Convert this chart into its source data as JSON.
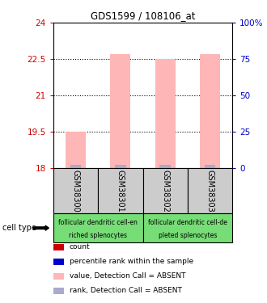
{
  "title": "GDS1599 / 108106_at",
  "samples": [
    "GSM38300",
    "GSM38301",
    "GSM38302",
    "GSM38303"
  ],
  "bar_values": [
    19.5,
    22.7,
    22.5,
    22.7
  ],
  "bar_bottom": 18.0,
  "ylim": [
    18.0,
    24.0
  ],
  "yticks_left": [
    18,
    19.5,
    21,
    22.5,
    24
  ],
  "yticks_right": [
    0,
    25,
    50,
    75,
    100
  ],
  "ytick_labels_left": [
    "18",
    "19.5",
    "21",
    "22.5",
    "24"
  ],
  "ytick_labels_right": [
    "0",
    "25",
    "50",
    "75",
    "100%"
  ],
  "bar_color": "#ffb6b6",
  "rank_color": "#aaaacc",
  "left_tick_color": "#cc0000",
  "right_tick_color": "#0000cc",
  "cell_types": [
    {
      "label_top": "follicular dendritic cell-en",
      "label_bot": "riched splenocytes",
      "color": "#77dd77",
      "span": [
        0,
        2
      ]
    },
    {
      "label_top": "follicular dendritic cell-de",
      "label_bot": "pleted splenocytes",
      "color": "#77dd77",
      "span": [
        2,
        4
      ]
    }
  ],
  "legend_items": [
    {
      "color": "#cc0000",
      "label": "count"
    },
    {
      "color": "#0000cc",
      "label": "percentile rank within the sample"
    },
    {
      "color": "#ffb6b6",
      "label": "value, Detection Call = ABSENT"
    },
    {
      "color": "#aaaacc",
      "label": "rank, Detection Call = ABSENT"
    }
  ],
  "cell_type_label": "cell type",
  "grid_yticks": [
    19.5,
    21,
    22.5
  ],
  "sample_bg": "#cccccc"
}
